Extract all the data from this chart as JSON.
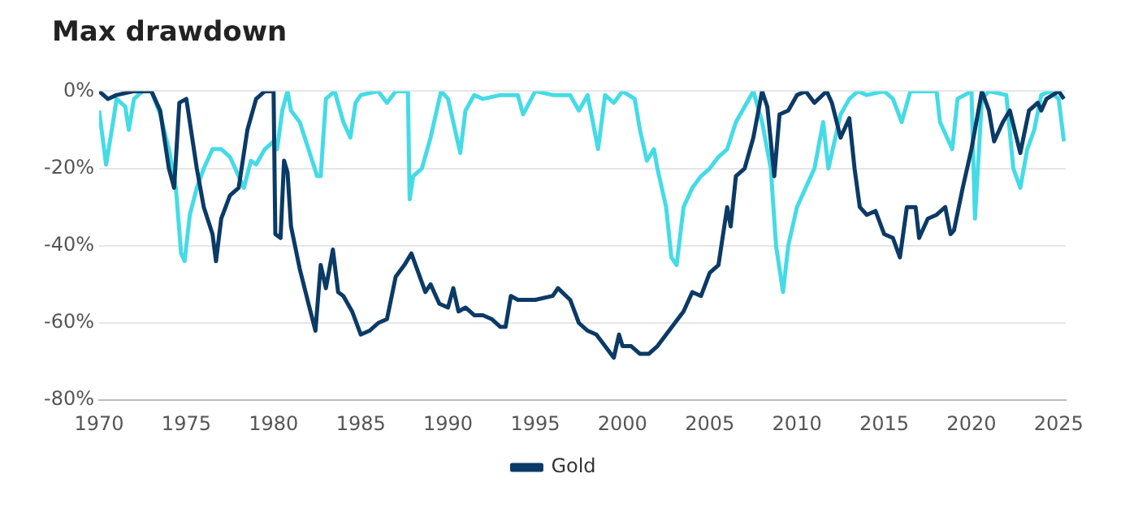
{
  "chart_data": {
    "type": "line",
    "title": "Max drawdown",
    "xlim": [
      1970,
      2025.4
    ],
    "xticks": [
      1970,
      1975,
      1980,
      1985,
      1990,
      1995,
      2000,
      2005,
      2010,
      2015,
      2020,
      2025
    ],
    "ylim": [
      -80,
      0
    ],
    "yticks": [
      {
        "value": -80,
        "label": "-80%"
      },
      {
        "value": -60,
        "label": "-60%"
      },
      {
        "value": -40,
        "label": "-40%"
      },
      {
        "value": -20,
        "label": "-20%"
      },
      {
        "value": 0,
        "label": "0%"
      }
    ],
    "grid": "y",
    "legend": "bottom",
    "marker": "none",
    "line_style": "solid",
    "series": [
      {
        "name": "Gold",
        "color": "#0b3a66",
        "x": [
          1970,
          1970.5,
          1971,
          1972,
          1973,
          1973.5,
          1974,
          1974.3,
          1974.6,
          1975,
          1975.6,
          1976,
          1976.5,
          1976.7,
          1977,
          1977.5,
          1978,
          1978.5,
          1979,
          1979.5,
          1980,
          1980.1,
          1980.4,
          1980.6,
          1980.8,
          1981,
          1981.5,
          1982,
          1982.4,
          1982.7,
          1983,
          1983.4,
          1983.7,
          1984,
          1984.5,
          1985,
          1985.5,
          1986,
          1986.5,
          1987,
          1987.5,
          1987.9,
          1988.3,
          1988.7,
          1989,
          1989.5,
          1990,
          1990.3,
          1990.6,
          1991,
          1991.5,
          1992,
          1992.5,
          1993,
          1993.3,
          1993.6,
          1994,
          1995,
          1996,
          1996.3,
          1997,
          1997.5,
          1998,
          1998.5,
          1999,
          1999.5,
          1999.8,
          2000,
          2000.5,
          2001,
          2001.5,
          2002,
          2002.5,
          2003,
          2003.5,
          2004,
          2004.5,
          2005,
          2005.5,
          2006,
          2006.2,
          2006.5,
          2007,
          2007.5,
          2008,
          2008.3,
          2008.7,
          2009,
          2009.5,
          2010,
          2010.5,
          2011,
          2011.7,
          2012,
          2012.5,
          2013,
          2013.3,
          2013.6,
          2014,
          2014.5,
          2015,
          2015.5,
          2015.9,
          2016.3,
          2016.8,
          2017,
          2017.5,
          2018,
          2018.5,
          2018.8,
          2019,
          2019.5,
          2020,
          2020.6,
          2021,
          2021.3,
          2021.8,
          2022.2,
          2022.8,
          2023.3,
          2023.8,
          2024,
          2024.3,
          2025,
          2025.3
        ],
        "values": [
          0,
          -2,
          -1,
          0,
          0,
          -5,
          -20,
          -25,
          -3,
          -2,
          -20,
          -30,
          -37,
          -44,
          -33,
          -27,
          -25,
          -10,
          -2,
          0,
          0,
          -37,
          -38,
          -18,
          -21,
          -35,
          -46,
          -55,
          -62,
          -45,
          -51,
          -41,
          -52,
          -53,
          -57,
          -63,
          -62,
          -60,
          -59,
          -48,
          -45,
          -42,
          -47,
          -52,
          -50,
          -55,
          -56,
          -51,
          -57,
          -56,
          -58,
          -58,
          -59,
          -61,
          -61,
          -53,
          -54,
          -54,
          -53,
          -51,
          -54,
          -60,
          -62,
          -63,
          -66,
          -69,
          -63,
          -66,
          -66,
          -68,
          -68,
          -66,
          -63,
          -60,
          -57,
          -52,
          -53,
          -47,
          -45,
          -30,
          -35,
          -22,
          -20,
          -12,
          0,
          -4,
          -22,
          -6,
          -5,
          -1,
          0,
          -3,
          0,
          -3,
          -12,
          -7,
          -20,
          -30,
          -32,
          -31,
          -37,
          -38,
          -43,
          -30,
          -30,
          -38,
          -33,
          -32,
          -30,
          -37,
          -36,
          -25,
          -15,
          0,
          -5,
          -13,
          -8,
          -5,
          -16,
          -5,
          -3,
          -5,
          -2,
          0,
          -2
        ]
      },
      {
        "color": "#45dbe6",
        "x": [
          1970,
          1970.4,
          1970.8,
          1971,
          1971.5,
          1971.7,
          1972,
          1972.5,
          1973,
          1973.5,
          1974,
          1974.4,
          1974.7,
          1974.9,
          1975.2,
          1975.6,
          1976,
          1976.5,
          1977,
          1977.5,
          1978,
          1978.3,
          1978.7,
          1979,
          1979.5,
          1980,
          1980.2,
          1980.5,
          1980.8,
          1981,
          1981.5,
          1982,
          1982.5,
          1982.7,
          1983,
          1983.5,
          1984,
          1984.4,
          1984.7,
          1985,
          1986,
          1986.5,
          1987,
          1987.7,
          1987.8,
          1988,
          1988.5,
          1989,
          1989.6,
          1990,
          1990.7,
          1991,
          1991.5,
          1992,
          1993,
          1994,
          1994.3,
          1995,
          1996,
          1997,
          1997.5,
          1998,
          1998.6,
          1999,
          1999.5,
          2000,
          2000.7,
          2001,
          2001.4,
          2001.8,
          2002,
          2002.5,
          2002.8,
          2003.1,
          2003.5,
          2004,
          2004.5,
          2005,
          2005.5,
          2006,
          2006.5,
          2007,
          2007.5,
          2008,
          2008.5,
          2008.8,
          2009.2,
          2009.5,
          2010,
          2010.5,
          2011,
          2011.5,
          2011.8,
          2012.5,
          2013,
          2013.5,
          2014,
          2015,
          2015.5,
          2016,
          2016.5,
          2017,
          2018,
          2018.2,
          2018.9,
          2019.2,
          2020,
          2020.2,
          2020.6,
          2021,
          2022,
          2022.4,
          2022.8,
          2023.2,
          2023.6,
          2024,
          2024.5,
          2025,
          2025.3
        ],
        "values": [
          -5,
          -19,
          -8,
          -2,
          -4,
          -10,
          -2,
          0,
          0,
          -6,
          -15,
          -25,
          -42,
          -44,
          -32,
          -25,
          -20,
          -15,
          -15,
          -17,
          -22,
          -25,
          -18,
          -19,
          -15,
          -13,
          -15,
          -5,
          0,
          -5,
          -8,
          -15,
          -22,
          -22,
          -2,
          0,
          -8,
          -12,
          -3,
          -1,
          0,
          -3,
          0,
          0,
          -28,
          -22,
          -20,
          -12,
          0,
          -2,
          -16,
          -5,
          -1,
          -2,
          -1,
          -1,
          -6,
          0,
          -1,
          -1,
          -5,
          -1,
          -15,
          -1,
          -3,
          0,
          -2,
          -10,
          -18,
          -15,
          -20,
          -30,
          -43,
          -45,
          -30,
          -25,
          -22,
          -20,
          -17,
          -15,
          -8,
          -4,
          0,
          -8,
          -20,
          -40,
          -52,
          -40,
          -30,
          -25,
          -20,
          -8,
          -20,
          -6,
          -2,
          0,
          -1,
          0,
          -2,
          -8,
          0,
          0,
          0,
          -8,
          -15,
          -2,
          0,
          -33,
          -2,
          0,
          -1,
          -20,
          -25,
          -15,
          -10,
          -1,
          0,
          -2,
          -13
        ]
      }
    ]
  }
}
